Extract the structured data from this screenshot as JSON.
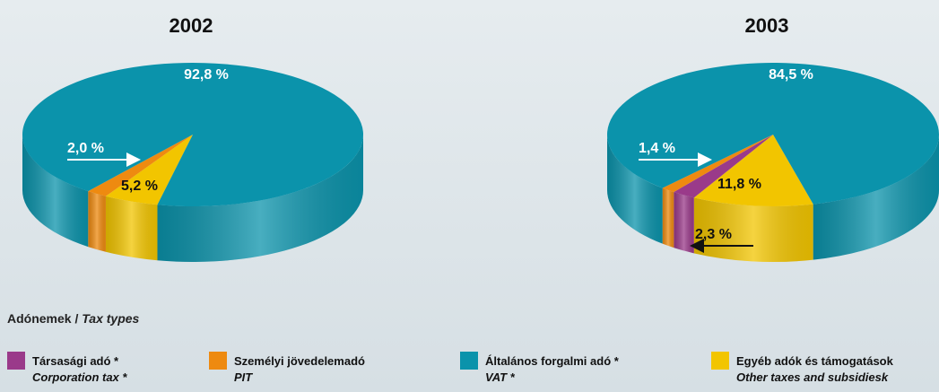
{
  "chart_data": [
    {
      "type": "pie",
      "title": "2002",
      "values": [
        5.2,
        2.0,
        92.8
      ],
      "value_labels": [
        "5,2 %",
        "2,0 %",
        "92,8 %"
      ],
      "colors": [
        "#f2c500",
        "#ee8a10",
        "#0b93ab"
      ]
    },
    {
      "type": "pie",
      "title": "2003",
      "values": [
        11.8,
        2.3,
        1.4,
        84.5
      ],
      "value_labels": [
        "11,8 %",
        "2,3 %",
        "1,4 %",
        "84,5 %"
      ],
      "colors": [
        "#f2c500",
        "#9a3a8a",
        "#ee8a10",
        "#0b93ab"
      ]
    }
  ],
  "legend": {
    "title": "Adónemek /",
    "title_en": "Tax types",
    "items": [
      {
        "name": "Társasági adó *",
        "name_en": "Corporation tax *",
        "color": "#9a3a8a"
      },
      {
        "name": "Személyi jövedelemadó",
        "name_en": "PIT",
        "color": "#ee8a10"
      },
      {
        "name": "Általános forgalmi adó *",
        "name_en": "VAT *",
        "color": "#0b93ab"
      },
      {
        "name": "Egyéb adók és támogatások",
        "name_en": "Other taxes and subsidiesk",
        "color": "#f2c500"
      }
    ]
  }
}
